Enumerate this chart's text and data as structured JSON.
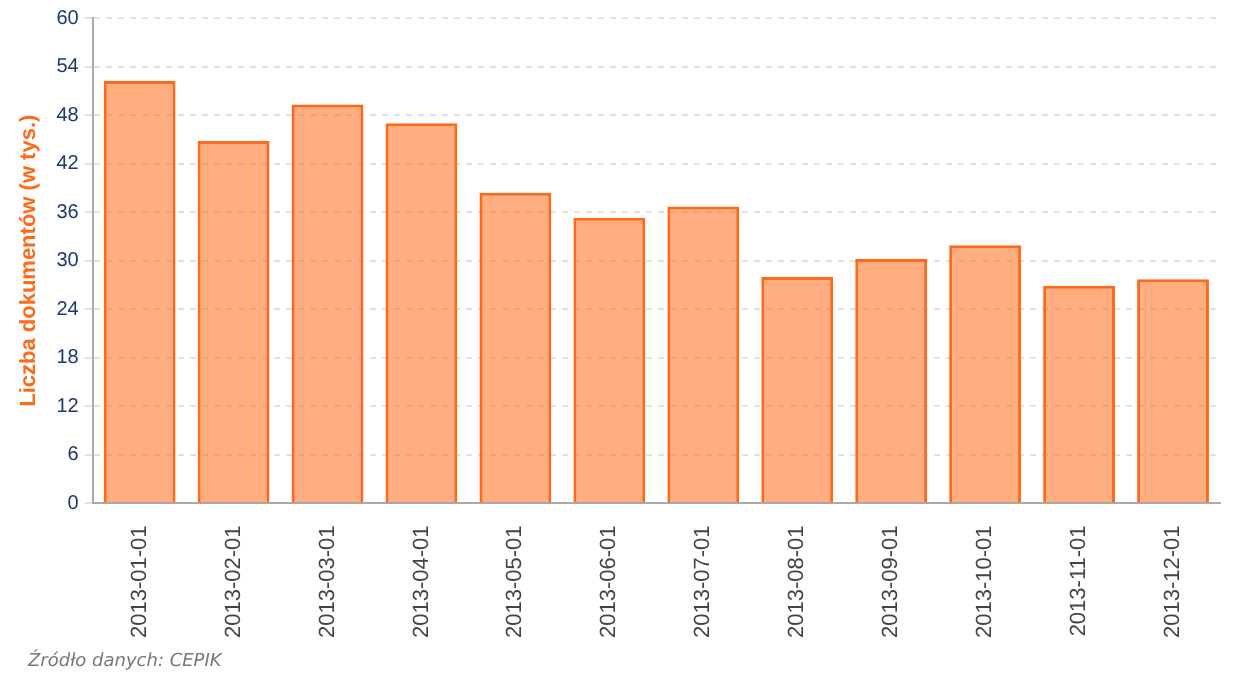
{
  "chart_data": {
    "type": "bar",
    "ylabel": "Liczba dokumentów (w tys.)",
    "categories": [
      "2013-01-01",
      "2013-02-01",
      "2013-03-01",
      "2013-04-01",
      "2013-05-01",
      "2013-06-01",
      "2013-07-01",
      "2013-08-01",
      "2013-09-01",
      "2013-10-01",
      "2013-11-01",
      "2013-12-01"
    ],
    "values": [
      52.2,
      44.8,
      49.3,
      47.0,
      38.4,
      35.3,
      36.7,
      28.0,
      30.2,
      31.9,
      26.9,
      27.7
    ],
    "color": "#ff6a1a",
    "ylim": [
      0,
      60
    ],
    "yticks": [
      0,
      6,
      12,
      18,
      24,
      30,
      36,
      42,
      48,
      54,
      60
    ],
    "grid": "y",
    "legend": false,
    "annotations": [
      "Źródło danych:  CEPIK"
    ]
  }
}
